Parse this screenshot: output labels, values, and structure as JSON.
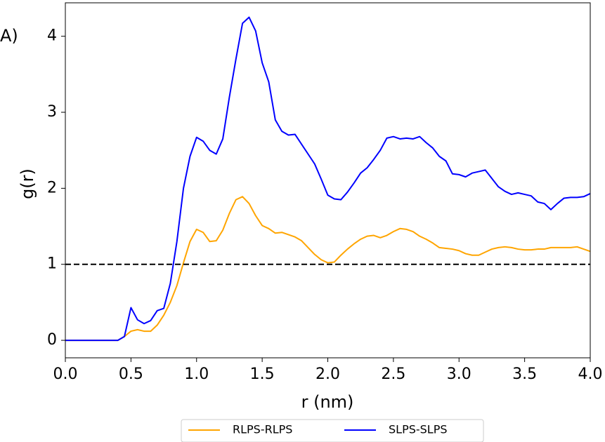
{
  "chart_data": {
    "type": "line",
    "panel_label": "A)",
    "xlabel": "r (nm)",
    "ylabel": "g(r)",
    "x": [
      0,
      0.05,
      0.1,
      0.15,
      0.2,
      0.25,
      0.3,
      0.35,
      0.4,
      0.45,
      0.5,
      0.55,
      0.6,
      0.65,
      0.7,
      0.75,
      0.8,
      0.85,
      0.9,
      0.95,
      1.0,
      1.05,
      1.1,
      1.15,
      1.2,
      1.25,
      1.3,
      1.35,
      1.4,
      1.45,
      1.5,
      1.55,
      1.6,
      1.65,
      1.7,
      1.75,
      1.8,
      1.85,
      1.9,
      1.95,
      2.0,
      2.05,
      2.1,
      2.15,
      2.2,
      2.25,
      2.3,
      2.35,
      2.4,
      2.45,
      2.5,
      2.55,
      2.6,
      2.65,
      2.7,
      2.75,
      2.8,
      2.85,
      2.9,
      2.95,
      3.0,
      3.05,
      3.1,
      3.15,
      3.2,
      3.25,
      3.3,
      3.35,
      3.4,
      3.45,
      3.5,
      3.55,
      3.6,
      3.65,
      3.7,
      3.75,
      3.8,
      3.85,
      3.9,
      3.95,
      4.0
    ],
    "series": [
      {
        "name": "RLPS-RLPS",
        "color": "#ffa500",
        "values": [
          0,
          0,
          0,
          0,
          0,
          0,
          0,
          0,
          0,
          0.05,
          0.12,
          0.14,
          0.12,
          0.12,
          0.2,
          0.33,
          0.5,
          0.72,
          1.02,
          1.3,
          1.46,
          1.42,
          1.3,
          1.31,
          1.45,
          1.67,
          1.85,
          1.89,
          1.8,
          1.64,
          1.51,
          1.47,
          1.41,
          1.42,
          1.39,
          1.36,
          1.31,
          1.22,
          1.13,
          1.06,
          1.02,
          1.03,
          1.12,
          1.2,
          1.27,
          1.33,
          1.37,
          1.38,
          1.35,
          1.38,
          1.43,
          1.47,
          1.46,
          1.43,
          1.37,
          1.33,
          1.28,
          1.22,
          1.21,
          1.2,
          1.18,
          1.14,
          1.12,
          1.12,
          1.16,
          1.2,
          1.22,
          1.23,
          1.22,
          1.2,
          1.19,
          1.19,
          1.2,
          1.2,
          1.22,
          1.22,
          1.22,
          1.22,
          1.23,
          1.2,
          1.17
        ]
      },
      {
        "name": "SLPS-SLPS",
        "color": "#0000ff",
        "values": [
          0,
          0,
          0,
          0,
          0,
          0,
          0,
          0,
          0,
          0.05,
          0.43,
          0.27,
          0.22,
          0.26,
          0.39,
          0.42,
          0.75,
          1.3,
          2.0,
          2.42,
          2.67,
          2.62,
          2.5,
          2.45,
          2.65,
          3.2,
          3.7,
          4.17,
          4.25,
          4.07,
          3.65,
          3.4,
          2.9,
          2.75,
          2.7,
          2.71,
          2.58,
          2.45,
          2.32,
          2.12,
          1.91,
          1.86,
          1.85,
          1.95,
          2.07,
          2.2,
          2.27,
          2.38,
          2.5,
          2.66,
          2.68,
          2.65,
          2.66,
          2.65,
          2.68,
          2.6,
          2.53,
          2.42,
          2.36,
          2.19,
          2.18,
          2.15,
          2.2,
          2.22,
          2.24,
          2.13,
          2.02,
          1.96,
          1.92,
          1.94,
          1.92,
          1.9,
          1.82,
          1.8,
          1.72,
          1.8,
          1.87,
          1.88,
          1.88,
          1.89,
          1.93
        ]
      }
    ],
    "hline": 1,
    "xlim": [
      0,
      4
    ],
    "ylim": [
      -0.23,
      4.44
    ],
    "xticks": [
      {
        "value": 0,
        "label": "0.0"
      },
      0.5,
      {
        "value": 1,
        "label": "1.0"
      },
      1.5,
      {
        "value": 2,
        "label": "2.0"
      },
      2.5,
      {
        "value": 3,
        "label": "3.0"
      },
      3.5,
      {
        "value": 4,
        "label": "4.0"
      }
    ],
    "yticks": [
      0,
      1,
      2,
      3,
      4
    ],
    "legend": "bottom"
  }
}
